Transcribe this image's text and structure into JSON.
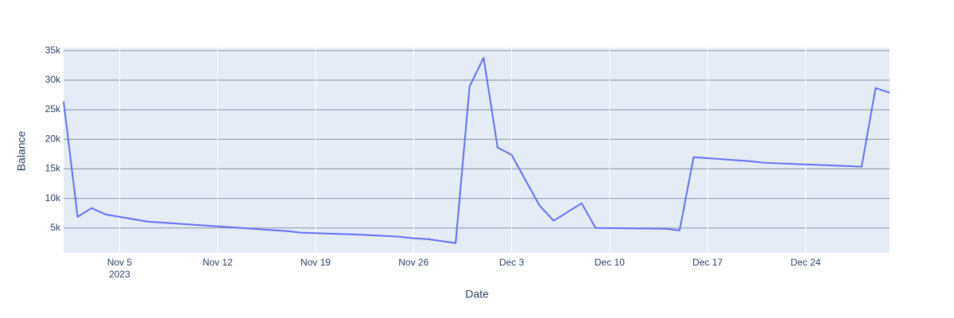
{
  "chart_data": {
    "type": "line",
    "x_label": "Date",
    "y_label": "Balance",
    "x": [
      "2023-11-01",
      "2023-11-02",
      "2023-11-03",
      "2023-11-04",
      "2023-11-07",
      "2023-11-17",
      "2023-11-18",
      "2023-11-22",
      "2023-11-25",
      "2023-11-26",
      "2023-11-27",
      "2023-11-29",
      "2023-11-30",
      "2023-12-01",
      "2023-12-02",
      "2023-12-03",
      "2023-12-05",
      "2023-12-06",
      "2023-12-08",
      "2023-12-09",
      "2023-12-14",
      "2023-12-15",
      "2023-12-16",
      "2023-12-20",
      "2023-12-21",
      "2023-12-28",
      "2023-12-29",
      "2023-12-30"
    ],
    "series": [
      {
        "name": "Balance",
        "color": "#636efa",
        "values": [
          26400,
          6890,
          8370,
          7290,
          6080,
          4470,
          4200,
          3900,
          3530,
          3250,
          3120,
          2450,
          28950,
          33800,
          18600,
          17380,
          8770,
          6220,
          9180,
          5000,
          4870,
          4600,
          16980,
          16300,
          16040,
          15370,
          28680,
          27870
        ]
      }
    ],
    "xlim": [
      "2023-11-01",
      "2023-12-30"
    ],
    "xticks": [
      {
        "value": "2023-11-05",
        "label": "Nov 5"
      },
      {
        "value": "2023-11-12",
        "label": "Nov 12"
      },
      {
        "value": "2023-11-19",
        "label": "Nov 19"
      },
      {
        "value": "2023-11-26",
        "label": "Nov 26"
      },
      {
        "value": "2023-12-03",
        "label": "Dec 3"
      },
      {
        "value": "2023-12-10",
        "label": "Dec 10"
      },
      {
        "value": "2023-12-17",
        "label": "Dec 17"
      },
      {
        "value": "2023-12-24",
        "label": "Dec 24"
      }
    ],
    "x_year_label": "2023",
    "ylim": [
      800,
      35500
    ],
    "yticks": [
      {
        "value": 5000,
        "label": "5k"
      },
      {
        "value": 10000,
        "label": "10k"
      },
      {
        "value": 15000,
        "label": "15k"
      },
      {
        "value": 20000,
        "label": "20k"
      },
      {
        "value": 25000,
        "label": "25k"
      },
      {
        "value": 30000,
        "label": "30k"
      },
      {
        "value": 35000,
        "label": "35k"
      }
    ],
    "grid": true,
    "plot_background": "#e5ecf6"
  }
}
